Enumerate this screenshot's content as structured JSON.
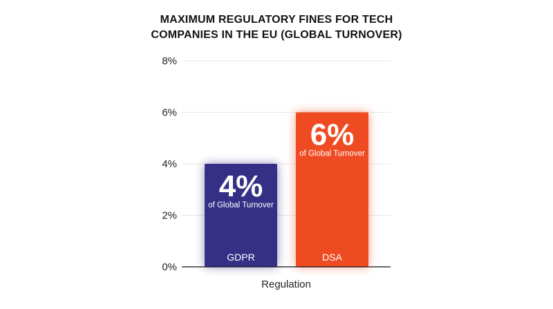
{
  "chart_data": {
    "type": "bar",
    "title_lines": [
      "MAXIMUM REGULATORY FINES FOR TECH",
      "COMPANIES IN THE EU (GLOBAL TURNOVER)"
    ],
    "xlabel": "Regulation",
    "ylabel": "",
    "ylim": [
      0,
      8
    ],
    "yticks": [
      "0%",
      "2%",
      "4%",
      "6%",
      "8%"
    ],
    "categories": [
      "GDPR",
      "DSA"
    ],
    "values": [
      4,
      6
    ],
    "value_labels": [
      "4%",
      "6%"
    ],
    "value_sublabel": "of Global Turnover",
    "colors": [
      "#353085",
      "#EF4B23"
    ],
    "grid": true,
    "legend": "none"
  }
}
